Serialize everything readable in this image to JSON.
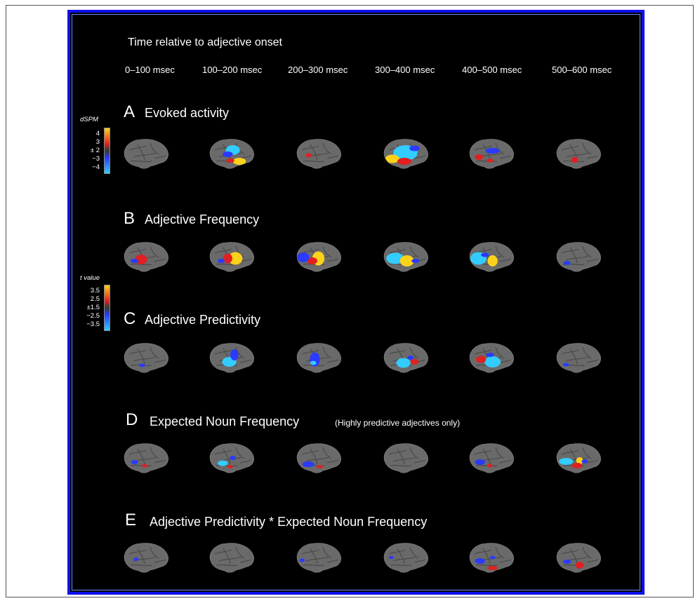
{
  "header": {
    "title": "Time relative to adjective onset",
    "time_windows": [
      "0–100 msec",
      "100–200 msec",
      "200–300 msec",
      "300–400 msec",
      "400–500 msec",
      "500–600 msec"
    ]
  },
  "legends": {
    "dspm": {
      "title": "dSPM",
      "ticks": [
        "4",
        "3",
        "± 2",
        "−3",
        "−4"
      ]
    },
    "t_value": {
      "title": "t value",
      "ticks": [
        "3.5",
        "2.5",
        "±1.5",
        "−2.5",
        "−3.5"
      ]
    }
  },
  "colors": {
    "background": "#000000",
    "border": "#1010ee",
    "brain": "#6a6a6a",
    "positive_strong": "#ffd21a",
    "positive": "#e02020",
    "negative": "#2a3aff",
    "negative_strong": "#33ccff"
  },
  "rows": [
    {
      "letter": "A",
      "title": "Evoked activity",
      "subtitle": "",
      "panels": [
        {
          "blobs": []
        },
        {
          "blobs": [
            [
              "negative_strong",
              0.55,
              0.4,
              0.14,
              0.14
            ],
            [
              "negative",
              0.45,
              0.52,
              0.1,
              0.08
            ],
            [
              "positive_strong",
              0.68,
              0.72,
              0.13,
              0.1
            ],
            [
              "positive",
              0.5,
              0.7,
              0.08,
              0.06
            ]
          ]
        },
        {
          "blobs": [
            [
              "positive",
              0.33,
              0.55,
              0.06,
              0.06
            ]
          ]
        },
        {
          "blobs": [
            [
              "negative_strong",
              0.52,
              0.48,
              0.24,
              0.22
            ],
            [
              "positive_strong",
              0.26,
              0.65,
              0.14,
              0.12
            ],
            [
              "positive",
              0.5,
              0.72,
              0.14,
              0.1
            ],
            [
              "negative",
              0.7,
              0.35,
              0.1,
              0.08
            ]
          ]
        },
        {
          "blobs": [
            [
              "positive",
              0.28,
              0.6,
              0.08,
              0.08
            ],
            [
              "negative",
              0.55,
              0.42,
              0.14,
              0.08
            ],
            [
              "positive",
              0.5,
              0.7,
              0.07,
              0.05
            ]
          ]
        },
        {
          "blobs": [
            [
              "positive",
              0.45,
              0.68,
              0.07,
              0.08
            ]
          ]
        }
      ]
    },
    {
      "letter": "B",
      "title": "Adjective Frequency",
      "subtitle": "",
      "panels": [
        {
          "blobs": [
            [
              "positive",
              0.43,
              0.58,
              0.12,
              0.14
            ],
            [
              "negative",
              0.3,
              0.62,
              0.08,
              0.06
            ]
          ]
        },
        {
          "blobs": [
            [
              "positive_strong",
              0.6,
              0.55,
              0.14,
              0.18
            ],
            [
              "positive",
              0.45,
              0.55,
              0.09,
              0.14
            ],
            [
              "negative",
              0.32,
              0.62,
              0.07,
              0.06
            ]
          ]
        },
        {
          "blobs": [
            [
              "positive_strong",
              0.52,
              0.55,
              0.12,
              0.2
            ],
            [
              "positive",
              0.4,
              0.62,
              0.1,
              0.1
            ],
            [
              "negative",
              0.22,
              0.52,
              0.12,
              0.14
            ]
          ]
        },
        {
          "blobs": [
            [
              "negative_strong",
              0.32,
              0.55,
              0.18,
              0.16
            ],
            [
              "positive_strong",
              0.55,
              0.62,
              0.14,
              0.16
            ],
            [
              "negative",
              0.72,
              0.62,
              0.08,
              0.06
            ]
          ]
        },
        {
          "blobs": [
            [
              "negative_strong",
              0.27,
              0.55,
              0.16,
              0.18
            ],
            [
              "positive_strong",
              0.55,
              0.62,
              0.1,
              0.16
            ],
            [
              "negative",
              0.4,
              0.45,
              0.08,
              0.06
            ]
          ]
        },
        {
          "blobs": [
            [
              "negative",
              0.3,
              0.68,
              0.07,
              0.06
            ]
          ]
        }
      ]
    },
    {
      "letter": "C",
      "title": "Adjective Predictivity",
      "subtitle": "",
      "panels": [
        {
          "blobs": [
            [
              "negative",
              0.45,
              0.72,
              0.06,
              0.05
            ]
          ]
        },
        {
          "blobs": [
            [
              "negative_strong",
              0.48,
              0.62,
              0.14,
              0.14
            ],
            [
              "negative",
              0.58,
              0.42,
              0.08,
              0.16
            ]
          ]
        },
        {
          "blobs": [
            [
              "negative",
              0.45,
              0.55,
              0.1,
              0.2
            ],
            [
              "negative_strong",
              0.42,
              0.65,
              0.06,
              0.06
            ]
          ]
        },
        {
          "blobs": [
            [
              "negative_strong",
              0.48,
              0.65,
              0.14,
              0.14
            ],
            [
              "positive",
              0.7,
              0.62,
              0.08,
              0.08
            ],
            [
              "negative",
              0.62,
              0.5,
              0.06,
              0.06
            ]
          ]
        },
        {
          "blobs": [
            [
              "negative_strong",
              0.55,
              0.62,
              0.16,
              0.16
            ],
            [
              "positive",
              0.32,
              0.55,
              0.1,
              0.1
            ],
            [
              "negative",
              0.5,
              0.42,
              0.08,
              0.06
            ]
          ]
        },
        {
          "blobs": [
            [
              "negative",
              0.28,
              0.7,
              0.06,
              0.05
            ]
          ]
        }
      ]
    },
    {
      "letter": "D",
      "title": "Expected Noun Frequency",
      "subtitle": "(Highly predictive adjectives only)",
      "panels": [
        {
          "blobs": [
            [
              "negative",
              0.3,
              0.62,
              0.07,
              0.06
            ],
            [
              "positive",
              0.5,
              0.72,
              0.05,
              0.05
            ]
          ]
        },
        {
          "blobs": [
            [
              "negative_strong",
              0.35,
              0.65,
              0.1,
              0.08
            ],
            [
              "negative",
              0.55,
              0.5,
              0.06,
              0.06
            ],
            [
              "positive",
              0.5,
              0.75,
              0.05,
              0.05
            ]
          ]
        },
        {
          "blobs": [
            [
              "negative",
              0.32,
              0.68,
              0.12,
              0.08
            ],
            [
              "positive",
              0.55,
              0.75,
              0.06,
              0.05
            ]
          ]
        },
        {
          "blobs": []
        },
        {
          "blobs": [
            [
              "negative",
              0.3,
              0.62,
              0.1,
              0.08
            ],
            [
              "positive",
              0.5,
              0.72,
              0.05,
              0.05
            ]
          ]
        },
        {
          "blobs": [
            [
              "negative_strong",
              0.28,
              0.6,
              0.14,
              0.1
            ],
            [
              "positive_strong",
              0.55,
              0.58,
              0.07,
              0.1
            ],
            [
              "positive",
              0.5,
              0.72,
              0.1,
              0.08
            ],
            [
              "negative",
              0.65,
              0.6,
              0.06,
              0.06
            ]
          ]
        }
      ]
    },
    {
      "letter": "E",
      "title": "Adjective Predictivity * Expected Noun Frequency",
      "subtitle": "",
      "panels": [
        {
          "blobs": [
            [
              "negative",
              0.33,
              0.55,
              0.05,
              0.05
            ]
          ]
        },
        {
          "blobs": []
        },
        {
          "blobs": [
            [
              "negative",
              0.2,
              0.58,
              0.05,
              0.05
            ]
          ]
        },
        {
          "blobs": [
            [
              "negative",
              0.24,
              0.5,
              0.05,
              0.04
            ]
          ]
        },
        {
          "blobs": [
            [
              "negative",
              0.3,
              0.6,
              0.1,
              0.08
            ],
            [
              "positive",
              0.55,
              0.8,
              0.1,
              0.06
            ],
            [
              "negative",
              0.55,
              0.5,
              0.05,
              0.05
            ]
          ]
        },
        {
          "blobs": [
            [
              "negative",
              0.3,
              0.62,
              0.08,
              0.06
            ],
            [
              "positive",
              0.55,
              0.72,
              0.08,
              0.1
            ]
          ]
        }
      ]
    }
  ]
}
